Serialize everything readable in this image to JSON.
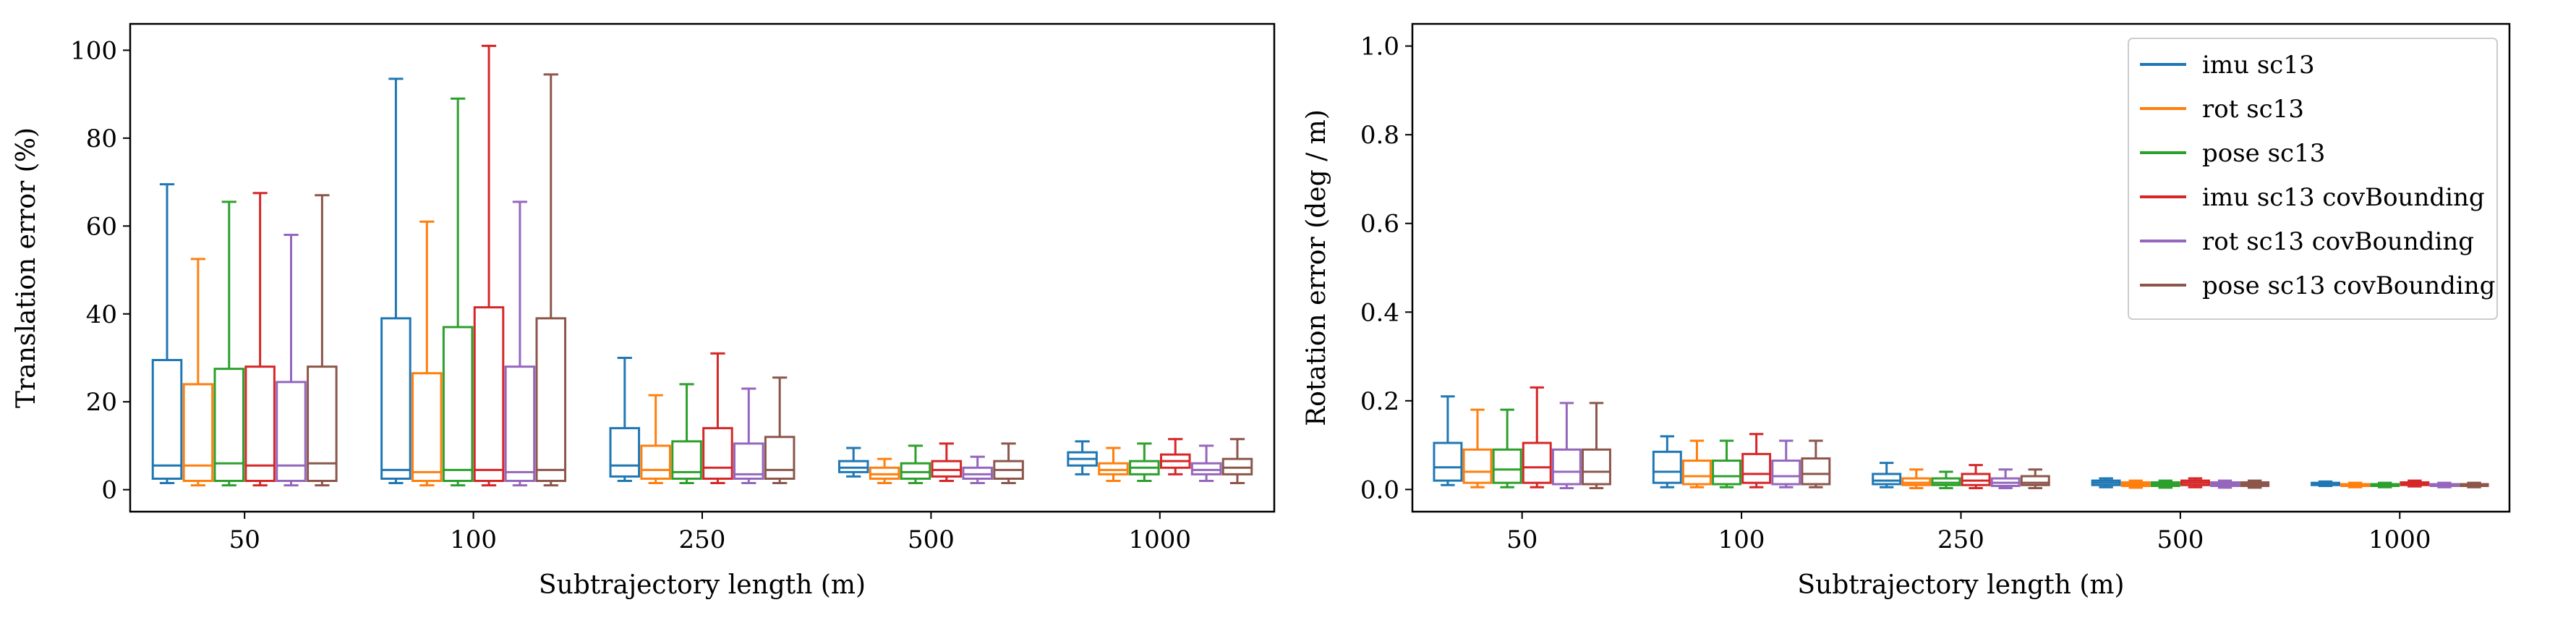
{
  "chart_data": [
    {
      "type": "boxplot",
      "xlabel": "Subtrajectory length (m)",
      "ylabel": "Translation error (%)",
      "ylim": [
        -5,
        106
      ],
      "yticks": [
        0,
        20,
        40,
        60,
        80,
        100
      ],
      "categories": [
        "50",
        "100",
        "250",
        "500",
        "1000"
      ],
      "grid": false,
      "legend": null,
      "series": [
        {
          "key": "imu sc13",
          "color": "#1f77b4",
          "boxes": [
            {
              "whislo": 1.5,
              "q1": 2.5,
              "med": 5.5,
              "q3": 29.5,
              "whishi": 69.5
            },
            {
              "whislo": 1.5,
              "q1": 2.5,
              "med": 4.5,
              "q3": 39,
              "whishi": 93.5
            },
            {
              "whislo": 2,
              "q1": 3,
              "med": 5.5,
              "q3": 14,
              "whishi": 30
            },
            {
              "whislo": 3,
              "q1": 4,
              "med": 5,
              "q3": 6.5,
              "whishi": 9.5
            },
            {
              "whislo": 3.5,
              "q1": 5.5,
              "med": 7,
              "q3": 8.5,
              "whishi": 11
            }
          ]
        },
        {
          "key": "rot sc13",
          "color": "#ff7f0e",
          "boxes": [
            {
              "whislo": 1,
              "q1": 2,
              "med": 5.5,
              "q3": 24,
              "whishi": 52.5
            },
            {
              "whislo": 1,
              "q1": 2,
              "med": 4,
              "q3": 26.5,
              "whishi": 61
            },
            {
              "whislo": 1.5,
              "q1": 2.5,
              "med": 4.5,
              "q3": 10,
              "whishi": 21.5
            },
            {
              "whislo": 1.5,
              "q1": 2.5,
              "med": 3.5,
              "q3": 5,
              "whishi": 7
            },
            {
              "whislo": 2,
              "q1": 3.5,
              "med": 4.5,
              "q3": 6,
              "whishi": 9.5
            }
          ]
        },
        {
          "key": "pose sc13",
          "color": "#2ca02c",
          "boxes": [
            {
              "whislo": 1,
              "q1": 2,
              "med": 6,
              "q3": 27.5,
              "whishi": 65.5
            },
            {
              "whislo": 1,
              "q1": 2,
              "med": 4.5,
              "q3": 37,
              "whishi": 89
            },
            {
              "whislo": 1.5,
              "q1": 2.5,
              "med": 4,
              "q3": 11,
              "whishi": 24
            },
            {
              "whislo": 1.5,
              "q1": 2.5,
              "med": 4,
              "q3": 6,
              "whishi": 10
            },
            {
              "whislo": 2,
              "q1": 3.5,
              "med": 5,
              "q3": 6.5,
              "whishi": 10.5
            }
          ]
        },
        {
          "key": "imu sc13 covBounding",
          "color": "#d62728",
          "boxes": [
            {
              "whislo": 1,
              "q1": 2,
              "med": 5.5,
              "q3": 28,
              "whishi": 67.5
            },
            {
              "whislo": 1,
              "q1": 2,
              "med": 4.5,
              "q3": 41.5,
              "whishi": 101
            },
            {
              "whislo": 1.5,
              "q1": 2.5,
              "med": 5,
              "q3": 14,
              "whishi": 31
            },
            {
              "whislo": 2,
              "q1": 3,
              "med": 4.5,
              "q3": 6.5,
              "whishi": 10.5
            },
            {
              "whislo": 3.5,
              "q1": 5,
              "med": 6.5,
              "q3": 8,
              "whishi": 11.5
            }
          ]
        },
        {
          "key": "rot sc13 covBounding",
          "color": "#9467bd",
          "boxes": [
            {
              "whislo": 1,
              "q1": 2,
              "med": 5.5,
              "q3": 24.5,
              "whishi": 58
            },
            {
              "whislo": 1,
              "q1": 2,
              "med": 4,
              "q3": 28,
              "whishi": 65.5
            },
            {
              "whislo": 1.5,
              "q1": 2.5,
              "med": 3.5,
              "q3": 10.5,
              "whishi": 23
            },
            {
              "whislo": 1.5,
              "q1": 2.5,
              "med": 3.5,
              "q3": 5,
              "whishi": 7.5
            },
            {
              "whislo": 2,
              "q1": 3.5,
              "med": 4.5,
              "q3": 6,
              "whishi": 10
            }
          ]
        },
        {
          "key": "pose sc13 covBounding",
          "color": "#8c564b",
          "boxes": [
            {
              "whislo": 1,
              "q1": 2,
              "med": 6,
              "q3": 28,
              "whishi": 67
            },
            {
              "whislo": 1,
              "q1": 2,
              "med": 4.5,
              "q3": 39,
              "whishi": 94.5
            },
            {
              "whislo": 1.5,
              "q1": 2.5,
              "med": 4.5,
              "q3": 12,
              "whishi": 25.5
            },
            {
              "whislo": 1.5,
              "q1": 2.5,
              "med": 4.5,
              "q3": 6.5,
              "whishi": 10.5
            },
            {
              "whislo": 1.5,
              "q1": 3.5,
              "med": 5,
              "q3": 7,
              "whishi": 11.5
            }
          ]
        }
      ]
    },
    {
      "type": "boxplot",
      "xlabel": "Subtrajectory length (m)",
      "ylabel": "Rotation error (deg / m)",
      "ylim": [
        -0.05,
        1.05
      ],
      "yticks": [
        "0.0",
        "0.2",
        "0.4",
        "0.6",
        "0.8",
        "1.0"
      ],
      "categories": [
        "50",
        "100",
        "250",
        "500",
        "1000"
      ],
      "grid": false,
      "legend": "top-right",
      "series": [
        {
          "name": "imu sc13",
          "color": "#1f77b4",
          "boxes": [
            {
              "whislo": 0.01,
              "q1": 0.02,
              "med": 0.05,
              "q3": 0.105,
              "whishi": 0.21
            },
            {
              "whislo": 0.005,
              "q1": 0.015,
              "med": 0.04,
              "q3": 0.085,
              "whishi": 0.12
            },
            {
              "whislo": 0.005,
              "q1": 0.012,
              "med": 0.02,
              "q3": 0.035,
              "whishi": 0.06
            },
            {
              "whislo": 0.005,
              "q1": 0.01,
              "med": 0.015,
              "q3": 0.02,
              "whishi": 0.025
            },
            {
              "whislo": 0.008,
              "q1": 0.01,
              "med": 0.012,
              "q3": 0.015,
              "whishi": 0.018
            }
          ]
        },
        {
          "name": "rot sc13",
          "color": "#ff7f0e",
          "boxes": [
            {
              "whislo": 0.005,
              "q1": 0.015,
              "med": 0.04,
              "q3": 0.09,
              "whishi": 0.18
            },
            {
              "whislo": 0.005,
              "q1": 0.012,
              "med": 0.03,
              "q3": 0.065,
              "whishi": 0.11
            },
            {
              "whislo": 0.003,
              "q1": 0.01,
              "med": 0.015,
              "q3": 0.025,
              "whishi": 0.045
            },
            {
              "whislo": 0.004,
              "q1": 0.008,
              "med": 0.012,
              "q3": 0.016,
              "whishi": 0.02
            },
            {
              "whislo": 0.005,
              "q1": 0.008,
              "med": 0.01,
              "q3": 0.012,
              "whishi": 0.015
            }
          ]
        },
        {
          "name": "pose sc13",
          "color": "#2ca02c",
          "boxes": [
            {
              "whislo": 0.005,
              "q1": 0.015,
              "med": 0.045,
              "q3": 0.09,
              "whishi": 0.18
            },
            {
              "whislo": 0.005,
              "q1": 0.012,
              "med": 0.03,
              "q3": 0.065,
              "whishi": 0.11
            },
            {
              "whislo": 0.003,
              "q1": 0.01,
              "med": 0.015,
              "q3": 0.025,
              "whishi": 0.04
            },
            {
              "whislo": 0.004,
              "q1": 0.008,
              "med": 0.012,
              "q3": 0.016,
              "whishi": 0.02
            },
            {
              "whislo": 0.005,
              "q1": 0.008,
              "med": 0.01,
              "q3": 0.012,
              "whishi": 0.015
            }
          ]
        },
        {
          "name": "imu sc13 covBounding",
          "color": "#d62728",
          "boxes": [
            {
              "whislo": 0.005,
              "q1": 0.015,
              "med": 0.05,
              "q3": 0.105,
              "whishi": 0.23
            },
            {
              "whislo": 0.005,
              "q1": 0.015,
              "med": 0.035,
              "q3": 0.08,
              "whishi": 0.125
            },
            {
              "whislo": 0.003,
              "q1": 0.01,
              "med": 0.02,
              "q3": 0.035,
              "whishi": 0.055
            },
            {
              "whislo": 0.005,
              "q1": 0.01,
              "med": 0.015,
              "q3": 0.02,
              "whishi": 0.025
            },
            {
              "whislo": 0.007,
              "q1": 0.01,
              "med": 0.012,
              "q3": 0.016,
              "whishi": 0.02
            }
          ]
        },
        {
          "name": "rot sc13 covBounding",
          "color": "#9467bd",
          "boxes": [
            {
              "whislo": 0.003,
              "q1": 0.012,
              "med": 0.04,
              "q3": 0.09,
              "whishi": 0.195
            },
            {
              "whislo": 0.005,
              "q1": 0.012,
              "med": 0.03,
              "q3": 0.065,
              "whishi": 0.11
            },
            {
              "whislo": 0.003,
              "q1": 0.008,
              "med": 0.015,
              "q3": 0.025,
              "whishi": 0.045
            },
            {
              "whislo": 0.004,
              "q1": 0.008,
              "med": 0.012,
              "q3": 0.016,
              "whishi": 0.02
            },
            {
              "whislo": 0.005,
              "q1": 0.008,
              "med": 0.01,
              "q3": 0.012,
              "whishi": 0.015
            }
          ]
        },
        {
          "name": "pose sc13 covBounding",
          "color": "#8c564b",
          "boxes": [
            {
              "whislo": 0.003,
              "q1": 0.012,
              "med": 0.04,
              "q3": 0.09,
              "whishi": 0.195
            },
            {
              "whislo": 0.005,
              "q1": 0.012,
              "med": 0.035,
              "q3": 0.07,
              "whishi": 0.11
            },
            {
              "whislo": 0.003,
              "q1": 0.01,
              "med": 0.015,
              "q3": 0.03,
              "whishi": 0.045
            },
            {
              "whislo": 0.004,
              "q1": 0.008,
              "med": 0.012,
              "q3": 0.016,
              "whishi": 0.02
            },
            {
              "whislo": 0.005,
              "q1": 0.008,
              "med": 0.01,
              "q3": 0.012,
              "whishi": 0.015
            }
          ]
        }
      ]
    }
  ]
}
